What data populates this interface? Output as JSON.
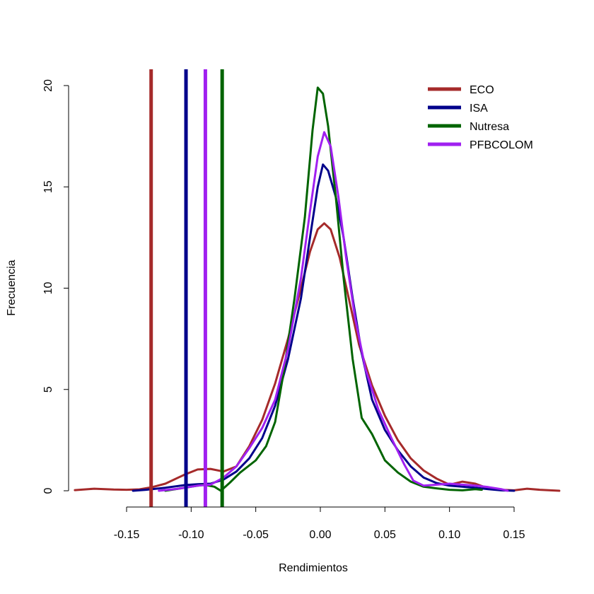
{
  "chart_data": {
    "type": "line",
    "title": "",
    "xlabel": "Rendimientos",
    "ylabel": "Frecuencia",
    "xlim": [
      -0.19,
      0.185
    ],
    "ylim": [
      0,
      20
    ],
    "xticks": [
      {
        "value": -0.15,
        "label": "-0.15"
      },
      {
        "value": -0.1,
        "label": "-0.10"
      },
      {
        "value": -0.05,
        "label": "-0.05"
      },
      {
        "value": 0.0,
        "label": "0.00"
      },
      {
        "value": 0.05,
        "label": "0.05"
      },
      {
        "value": 0.1,
        "label": "0.10"
      },
      {
        "value": 0.15,
        "label": "0.15"
      }
    ],
    "yticks": [
      {
        "value": 0,
        "label": "0"
      },
      {
        "value": 5,
        "label": "5"
      },
      {
        "value": 10,
        "label": "10"
      },
      {
        "value": 15,
        "label": "15"
      },
      {
        "value": 20,
        "label": "20"
      }
    ],
    "grid": false,
    "legend_position": "top-right",
    "series": [
      {
        "name": "ECO",
        "color": "#A52A2A",
        "vline": -0.131,
        "points": [
          [
            -0.19,
            0.03
          ],
          [
            -0.175,
            0.1
          ],
          [
            -0.16,
            0.06
          ],
          [
            -0.15,
            0.05
          ],
          [
            -0.14,
            0.07
          ],
          [
            -0.13,
            0.18
          ],
          [
            -0.12,
            0.35
          ],
          [
            -0.105,
            0.8
          ],
          [
            -0.095,
            1.05
          ],
          [
            -0.085,
            1.08
          ],
          [
            -0.075,
            0.95
          ],
          [
            -0.065,
            1.2
          ],
          [
            -0.055,
            2.2
          ],
          [
            -0.045,
            3.5
          ],
          [
            -0.035,
            5.3
          ],
          [
            -0.025,
            7.5
          ],
          [
            -0.015,
            10.0
          ],
          [
            -0.008,
            11.8
          ],
          [
            -0.002,
            12.9
          ],
          [
            0.003,
            13.2
          ],
          [
            0.008,
            12.9
          ],
          [
            0.015,
            11.5
          ],
          [
            0.022,
            9.5
          ],
          [
            0.03,
            7.2
          ],
          [
            0.04,
            5.2
          ],
          [
            0.05,
            3.7
          ],
          [
            0.06,
            2.5
          ],
          [
            0.07,
            1.6
          ],
          [
            0.08,
            1.0
          ],
          [
            0.09,
            0.6
          ],
          [
            0.1,
            0.3
          ],
          [
            0.11,
            0.45
          ],
          [
            0.12,
            0.35
          ],
          [
            0.13,
            0.12
          ],
          [
            0.14,
            0.05
          ],
          [
            0.15,
            0.02
          ],
          [
            0.16,
            0.1
          ],
          [
            0.17,
            0.05
          ],
          [
            0.185,
            0.0
          ]
        ]
      },
      {
        "name": "ISA",
        "color": "#00008B",
        "vline": -0.104,
        "points": [
          [
            -0.145,
            0.0
          ],
          [
            -0.135,
            0.05
          ],
          [
            -0.12,
            0.15
          ],
          [
            -0.105,
            0.28
          ],
          [
            -0.095,
            0.32
          ],
          [
            -0.085,
            0.35
          ],
          [
            -0.075,
            0.55
          ],
          [
            -0.065,
            0.95
          ],
          [
            -0.055,
            1.6
          ],
          [
            -0.045,
            2.6
          ],
          [
            -0.035,
            4.2
          ],
          [
            -0.025,
            6.5
          ],
          [
            -0.015,
            9.5
          ],
          [
            -0.008,
            12.5
          ],
          [
            -0.002,
            15.0
          ],
          [
            0.002,
            16.1
          ],
          [
            0.006,
            15.8
          ],
          [
            0.012,
            14.5
          ],
          [
            0.018,
            12.5
          ],
          [
            0.025,
            9.5
          ],
          [
            0.032,
            6.8
          ],
          [
            0.04,
            4.5
          ],
          [
            0.05,
            3.0
          ],
          [
            0.06,
            2.0
          ],
          [
            0.07,
            1.2
          ],
          [
            0.08,
            0.65
          ],
          [
            0.09,
            0.38
          ],
          [
            0.1,
            0.25
          ],
          [
            0.11,
            0.2
          ],
          [
            0.12,
            0.15
          ],
          [
            0.13,
            0.08
          ],
          [
            0.14,
            0.02
          ],
          [
            0.15,
            0.0
          ]
        ]
      },
      {
        "name": "Nutresa",
        "color": "#006400",
        "vline": -0.076,
        "points": [
          [
            -0.12,
            0.0
          ],
          [
            -0.11,
            0.1
          ],
          [
            -0.1,
            0.2
          ],
          [
            -0.09,
            0.3
          ],
          [
            -0.082,
            0.2
          ],
          [
            -0.077,
            0.0
          ],
          [
            -0.07,
            0.4
          ],
          [
            -0.062,
            0.9
          ],
          [
            -0.05,
            1.5
          ],
          [
            -0.042,
            2.2
          ],
          [
            -0.035,
            3.4
          ],
          [
            -0.028,
            6.0
          ],
          [
            -0.02,
            9.5
          ],
          [
            -0.012,
            13.5
          ],
          [
            -0.006,
            17.8
          ],
          [
            -0.002,
            19.9
          ],
          [
            0.002,
            19.6
          ],
          [
            0.006,
            18.0
          ],
          [
            0.012,
            14.5
          ],
          [
            0.018,
            10.5
          ],
          [
            0.025,
            6.5
          ],
          [
            0.032,
            3.6
          ],
          [
            0.04,
            2.8
          ],
          [
            0.05,
            1.5
          ],
          [
            0.06,
            0.9
          ],
          [
            0.07,
            0.45
          ],
          [
            0.08,
            0.2
          ],
          [
            0.09,
            0.12
          ],
          [
            0.1,
            0.05
          ],
          [
            0.11,
            0.02
          ],
          [
            0.12,
            0.08
          ],
          [
            0.125,
            0.05
          ]
        ]
      },
      {
        "name": "PFBCOLOM",
        "color": "#A020F0",
        "vline": -0.089,
        "points": [
          [
            -0.125,
            0.0
          ],
          [
            -0.11,
            0.1
          ],
          [
            -0.095,
            0.25
          ],
          [
            -0.085,
            0.3
          ],
          [
            -0.075,
            0.65
          ],
          [
            -0.065,
            1.2
          ],
          [
            -0.055,
            2.1
          ],
          [
            -0.045,
            3.1
          ],
          [
            -0.035,
            4.5
          ],
          [
            -0.025,
            7.0
          ],
          [
            -0.015,
            10.5
          ],
          [
            -0.008,
            13.8
          ],
          [
            -0.002,
            16.5
          ],
          [
            0.003,
            17.7
          ],
          [
            0.008,
            17.0
          ],
          [
            0.014,
            14.5
          ],
          [
            0.02,
            11.5
          ],
          [
            0.027,
            8.5
          ],
          [
            0.035,
            6.0
          ],
          [
            0.045,
            4.0
          ],
          [
            0.055,
            2.6
          ],
          [
            0.065,
            1.3
          ],
          [
            0.072,
            0.5
          ],
          [
            0.08,
            0.25
          ],
          [
            0.09,
            0.3
          ],
          [
            0.1,
            0.35
          ],
          [
            0.11,
            0.3
          ],
          [
            0.12,
            0.25
          ],
          [
            0.13,
            0.18
          ],
          [
            0.14,
            0.08
          ],
          [
            0.145,
            0.0
          ]
        ]
      }
    ]
  }
}
